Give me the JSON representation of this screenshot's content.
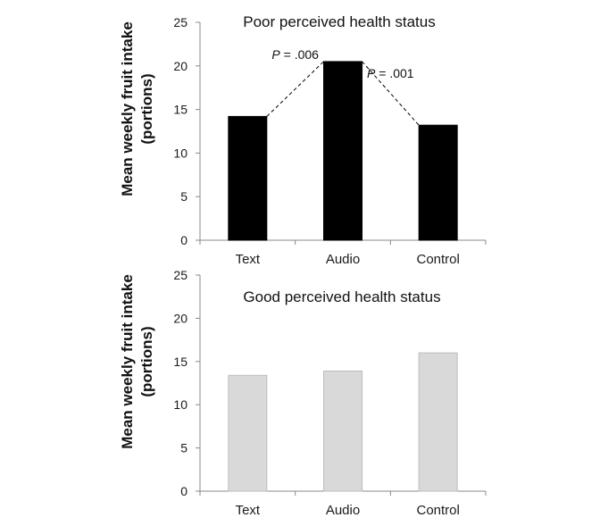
{
  "chart_data": [
    {
      "type": "bar",
      "title": "Poor perceived health status",
      "ylabel_line1": "Mean weekly fruit intake",
      "ylabel_line2": "(portions)",
      "categories": [
        "Text",
        "Audio",
        "Control"
      ],
      "values": [
        14.2,
        20.5,
        13.2
      ],
      "yticks": [
        "0",
        "5",
        "10",
        "15",
        "20",
        "25"
      ],
      "ylim": [
        0,
        25
      ],
      "bar_color": "#000000",
      "annotations": [
        {
          "italic": "P",
          "text": " = .006",
          "from": 0,
          "to": 1
        },
        {
          "italic": "P",
          "text": " = .001",
          "from": 1,
          "to": 2
        }
      ]
    },
    {
      "type": "bar",
      "title": "Good perceived health status",
      "ylabel_line1": "Mean weekly fruit intake",
      "ylabel_line2": "(portions)",
      "categories": [
        "Text",
        "Audio",
        "Control"
      ],
      "values": [
        13.4,
        13.9,
        16.0
      ],
      "yticks": [
        "0",
        "5",
        "10",
        "15",
        "20",
        "25"
      ],
      "ylim": [
        0,
        25
      ],
      "bar_color": "#d9d9d9",
      "annotations": []
    }
  ]
}
